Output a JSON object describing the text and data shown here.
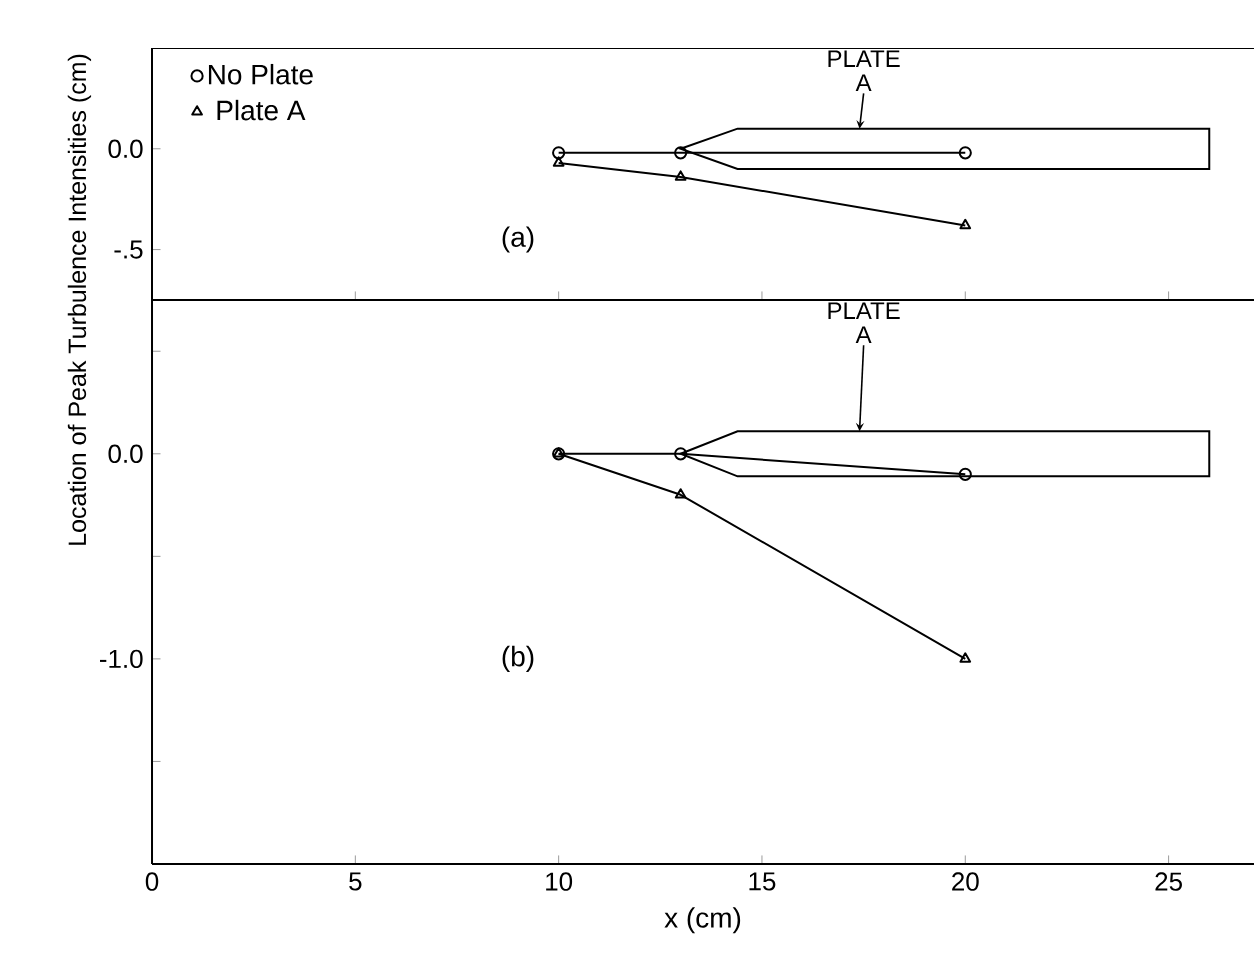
{
  "chart_data": [
    {
      "type": "line",
      "ylabel": "Location of Peak Turbulence Intensities (cm)",
      "x": [
        10,
        13,
        20
      ],
      "xlim": [
        0,
        27.1
      ],
      "xticks": [
        0,
        5,
        10,
        15,
        20,
        25
      ],
      "ylim": [
        -0.75,
        0.5
      ],
      "yticks": [
        {
          "value": -0.5,
          "label": "-.5"
        },
        {
          "value": 0,
          "label": "0.0"
        }
      ],
      "tick_labels": "y",
      "legend": "top left",
      "annotations": [
        "(a)",
        "PLATE A"
      ],
      "series": [
        {
          "name": "No Plate",
          "color": "#000000",
          "marker": "circle",
          "values": [
            -0.02,
            -0.02,
            -0.02
          ]
        },
        {
          "name": "Plate A",
          "color": "#000000",
          "marker": "triangle",
          "values": [
            -0.07,
            -0.14,
            -0.38
          ]
        }
      ]
    },
    {
      "type": "line",
      "xlabel": "x (cm)",
      "x": [
        10,
        13,
        20
      ],
      "xlim": [
        0,
        27.1
      ],
      "xticks": [
        0,
        5,
        10,
        15,
        20,
        25
      ],
      "ylim": [
        -2,
        0.75
      ],
      "yticks": [
        {
          "value": -1.5,
          "label": null
        },
        {
          "value": -1,
          "label": "-1.0"
        },
        {
          "value": -0.5,
          "label": null
        },
        {
          "value": 0,
          "label": "0.0"
        },
        {
          "value": 0.5,
          "label": null
        }
      ],
      "annotations": [
        "(b)",
        "PLATE A"
      ],
      "series": [
        {
          "color": "#000000",
          "marker": "circle",
          "values": [
            0,
            0,
            -0.1
          ]
        },
        {
          "color": "#000000",
          "marker": "triangle",
          "values": [
            0,
            -0.2,
            -1.0
          ]
        }
      ]
    }
  ]
}
